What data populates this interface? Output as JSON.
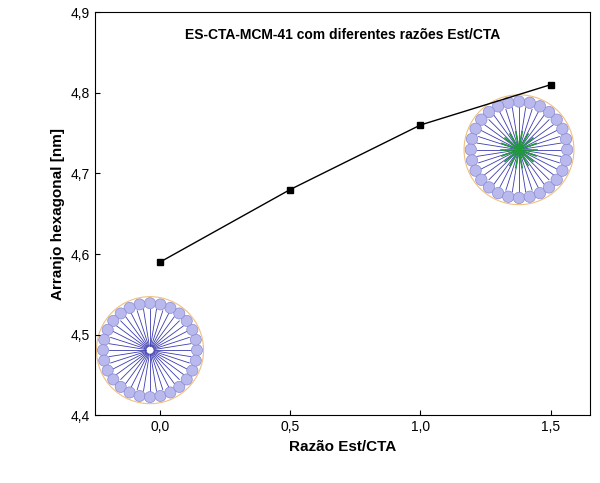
{
  "chart_data": {
    "type": "line",
    "title": "ES-CTA-MCM-41 com diferentes razões Est/CTA",
    "x_label": "Razão Est/CTA",
    "y_label": "Arranjo hexagonal [nm]",
    "x": [
      0.0,
      0.5,
      1.0,
      1.5
    ],
    "values": [
      4.59,
      4.68,
      4.76,
      4.81
    ],
    "color": "#000000",
    "marker": "square",
    "line_style": "solid",
    "xlim": [
      -0.25,
      1.65
    ],
    "xticks": [
      {
        "value": 0.0,
        "label": "0,0"
      },
      {
        "value": 0.5,
        "label": "0,5"
      },
      {
        "value": 1.0,
        "label": "1,0"
      },
      {
        "value": 1.5,
        "label": "1,5"
      }
    ],
    "ylim": [
      4.4,
      4.9
    ],
    "yticks": [
      {
        "value": 4.4,
        "label": "4,4"
      },
      {
        "value": 4.5,
        "label": "4,5"
      },
      {
        "value": 4.6,
        "label": "4,6"
      },
      {
        "value": 4.7,
        "label": "4,7"
      },
      {
        "value": 4.8,
        "label": "4,8"
      },
      {
        "value": 4.9,
        "label": "4,9"
      }
    ],
    "grid": false
  }
}
